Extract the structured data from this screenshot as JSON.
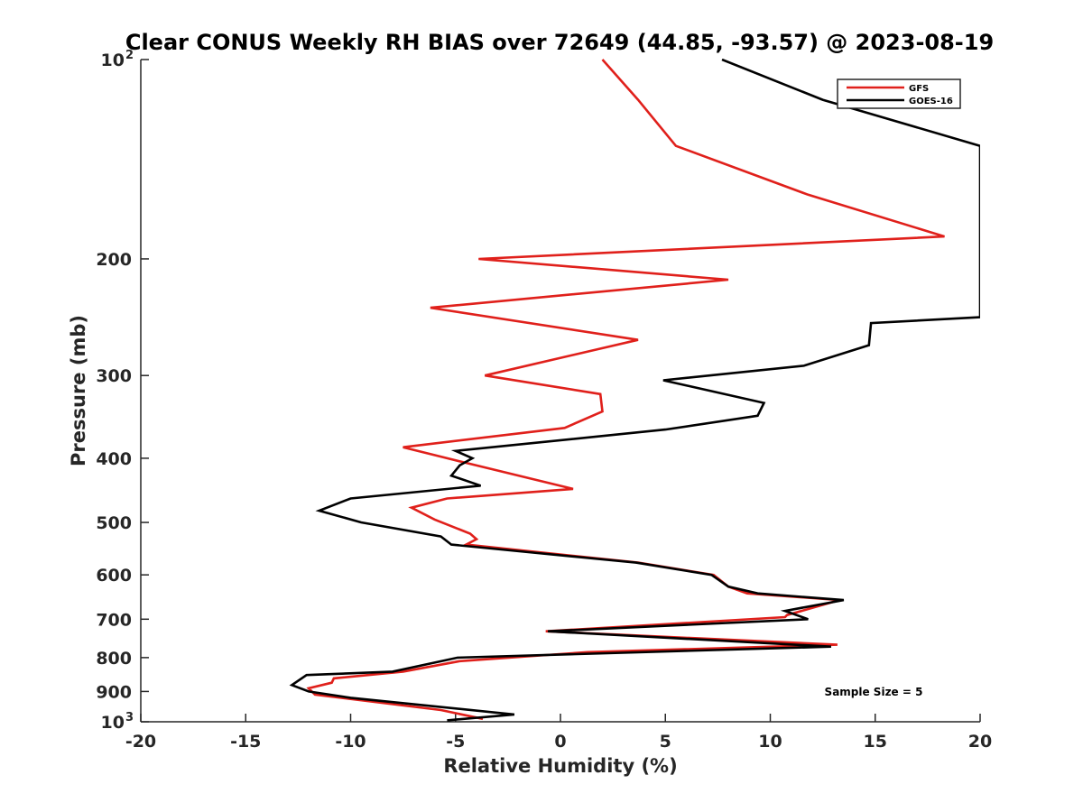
{
  "chart_data": {
    "type": "line",
    "title": "Clear CONUS Weekly RH BIAS over 72649 (44.85, -93.57) @ 2023-08-19",
    "xlabel": "Relative Humidity (%)",
    "ylabel": "Pressure (mb)",
    "xlim": [
      -20,
      20
    ],
    "ylim": [
      100,
      1000
    ],
    "yscale": "log",
    "y_reversed": true,
    "xticks": [
      "-20",
      "-15",
      "-10",
      "-5",
      "0",
      "5",
      "10",
      "15",
      "20"
    ],
    "yticks": [
      {
        "value": 100,
        "label": "10",
        "exp": "2"
      },
      {
        "value": 200,
        "label": "200"
      },
      {
        "value": 300,
        "label": "300"
      },
      {
        "value": 400,
        "label": "400"
      },
      {
        "value": 500,
        "label": "500"
      },
      {
        "value": 600,
        "label": "600"
      },
      {
        "value": 700,
        "label": "700"
      },
      {
        "value": 800,
        "label": "800"
      },
      {
        "value": 900,
        "label": "900"
      },
      {
        "value": 1000,
        "label": "10",
        "exp": "3"
      }
    ],
    "grid": false,
    "legend_position": "top-right",
    "annotation": "Sample Size = 5",
    "series": [
      {
        "name": "GFS",
        "color": "#e0201b",
        "points": [
          [
            2.0,
            100
          ],
          [
            3.7,
            115
          ],
          [
            5.5,
            135
          ],
          [
            11.8,
            160
          ],
          [
            18.3,
            185
          ],
          [
            -3.9,
            200
          ],
          [
            8.0,
            215
          ],
          [
            -6.2,
            237
          ],
          [
            3.7,
            265
          ],
          [
            -3.6,
            300
          ],
          [
            1.9,
            320
          ],
          [
            2.0,
            340
          ],
          [
            0.2,
            360
          ],
          [
            -7.5,
            385
          ],
          [
            -4.7,
            405
          ],
          [
            0.6,
            445
          ],
          [
            -5.4,
            460
          ],
          [
            -7.1,
            475
          ],
          [
            -6.0,
            495
          ],
          [
            -4.3,
            520
          ],
          [
            -4.0,
            530
          ],
          [
            -4.5,
            540
          ],
          [
            3.7,
            575
          ],
          [
            7.3,
            600
          ],
          [
            8.0,
            625
          ],
          [
            8.9,
            640
          ],
          [
            13.3,
            655
          ],
          [
            10.8,
            690
          ],
          [
            10.7,
            695
          ],
          [
            -0.7,
            730
          ],
          [
            13.2,
            765
          ],
          [
            1.3,
            785
          ],
          [
            -4.8,
            810
          ],
          [
            -7.5,
            840
          ],
          [
            -10.8,
            860
          ],
          [
            -10.9,
            873
          ],
          [
            -12.0,
            890
          ],
          [
            -11.7,
            910
          ],
          [
            -5.7,
            960
          ],
          [
            -3.7,
            990
          ]
        ]
      },
      {
        "name": "GOES-16",
        "color": "#000000",
        "points": [
          [
            7.7,
            100
          ],
          [
            12.5,
            115
          ],
          [
            20.0,
            135
          ],
          [
            20.0,
            245
          ],
          [
            14.8,
            250
          ],
          [
            14.7,
            270
          ],
          [
            11.6,
            290
          ],
          [
            4.9,
            305
          ],
          [
            9.7,
            330
          ],
          [
            9.4,
            345
          ],
          [
            5.0,
            362
          ],
          [
            -5.0,
            390
          ],
          [
            -4.2,
            400
          ],
          [
            -4.8,
            410
          ],
          [
            -5.2,
            425
          ],
          [
            -3.8,
            440
          ],
          [
            -10.0,
            460
          ],
          [
            -11.5,
            480
          ],
          [
            -9.5,
            500
          ],
          [
            -5.7,
            525
          ],
          [
            -5.2,
            540
          ],
          [
            3.6,
            575
          ],
          [
            7.2,
            600
          ],
          [
            8.0,
            625
          ],
          [
            9.4,
            640
          ],
          [
            13.5,
            655
          ],
          [
            10.7,
            680
          ],
          [
            11.8,
            700
          ],
          [
            -0.6,
            730
          ],
          [
            12.9,
            770
          ],
          [
            -4.9,
            800
          ],
          [
            -8.0,
            840
          ],
          [
            -12.1,
            850
          ],
          [
            -12.8,
            880
          ],
          [
            -12.0,
            900
          ],
          [
            -10.0,
            920
          ],
          [
            -2.2,
            975
          ],
          [
            -5.4,
            995
          ]
        ]
      }
    ]
  }
}
